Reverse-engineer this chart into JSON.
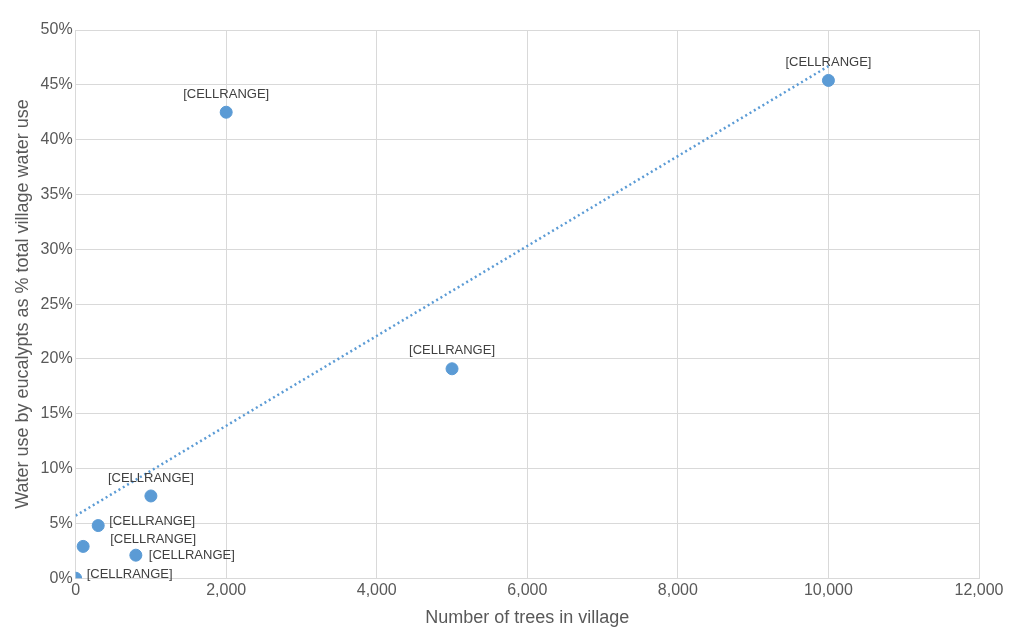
{
  "chart_data": {
    "type": "scatter",
    "xlabel": "Number of trees in village",
    "ylabel": "Water use by eucalypts as % total village water use",
    "xlim": [
      0,
      12000
    ],
    "xticks": [
      0,
      {
        "value": 2000,
        "label": "2,000"
      },
      {
        "value": 4000,
        "label": "4,000"
      },
      {
        "value": 6000,
        "label": "6,000"
      },
      {
        "value": 8000,
        "label": "8,000"
      },
      {
        "value": 10000,
        "label": "10,000"
      },
      {
        "value": 12000,
        "label": "12,000"
      }
    ],
    "ylim": [
      0,
      50
    ],
    "yticks": [
      {
        "value": 0,
        "label": "0%"
      },
      {
        "value": 5,
        "label": "5%"
      },
      {
        "value": 10,
        "label": "10%"
      },
      {
        "value": 15,
        "label": "15%"
      },
      {
        "value": 20,
        "label": "20%"
      },
      {
        "value": 25,
        "label": "25%"
      },
      {
        "value": 30,
        "label": "30%"
      },
      {
        "value": 35,
        "label": "35%"
      },
      {
        "value": 40,
        "label": "40%"
      },
      {
        "value": 45,
        "label": "45%"
      },
      {
        "value": 50,
        "label": "50%"
      }
    ],
    "grid": true,
    "legend": false,
    "series": [
      {
        "color": "#5b9bd5",
        "marker": "circle",
        "x": [
          0,
          100,
          300,
          800,
          1000,
          2000,
          5000,
          10000
        ],
        "values": [
          0,
          2.9,
          4.8,
          2.1,
          7.5,
          42.5,
          19.1,
          45.4
        ],
        "value_labels": [
          "[CELLRANGE]",
          "[CELLRANGE]",
          "[CELLRANGE]",
          "[CELLRANGE]",
          "[CELLRANGE]",
          "[CELLRANGE]",
          "[CELLRANGE]",
          "[CELLRANGE]"
        ]
      },
      {
        "type": "line",
        "color": "#5b9bd5",
        "marker": "none",
        "line_style": "dotted",
        "x": [
          0,
          10000
        ],
        "values": [
          5.7,
          46.7
        ]
      }
    ]
  }
}
